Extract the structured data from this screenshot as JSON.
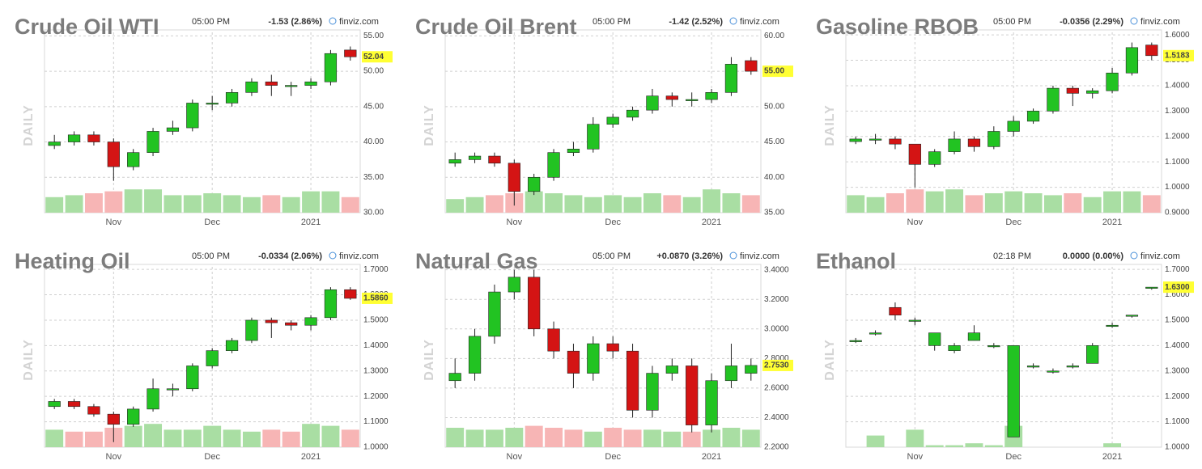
{
  "chart_data": [
    {
      "type": "candlestick",
      "title": "Crude Oil WTI",
      "time": "05:00 PM",
      "change": "-1.53 (2.86%)",
      "change_color": "#d00000",
      "source": "finviz.com",
      "side_label": "DAILY",
      "categories": [
        null,
        null,
        null,
        "Nov",
        null,
        null,
        null,
        null,
        "Dec",
        null,
        null,
        null,
        null,
        "2021",
        null,
        null
      ],
      "open": [
        39.5,
        40,
        41,
        40,
        36.5,
        38.5,
        41.5,
        42,
        45.5,
        45.5,
        47,
        48.5,
        48,
        48,
        48.5,
        53
      ],
      "high": [
        41,
        41.5,
        41.5,
        40.5,
        39,
        42,
        43,
        46,
        46.5,
        47.5,
        49,
        49.5,
        48.5,
        49,
        53,
        53.5
      ],
      "low": [
        39,
        39.5,
        39.5,
        34.5,
        36,
        38,
        41,
        41.5,
        44.5,
        45,
        46.5,
        46.5,
        46.5,
        47.5,
        48,
        51.5
      ],
      "close": [
        40,
        41,
        40,
        36.5,
        38.5,
        41.5,
        42,
        45.5,
        45.5,
        47,
        48.5,
        48,
        48,
        48.5,
        52.5,
        52.04
      ],
      "volume": [
        40,
        45,
        50,
        55,
        60,
        60,
        45,
        45,
        50,
        45,
        40,
        45,
        40,
        55,
        55,
        40
      ],
      "last_label": "52.04",
      "ylim": [
        30,
        55.5
      ],
      "yticks": [
        {
          "value": 30,
          "label": "30.00"
        },
        {
          "value": 35,
          "label": "35.00"
        },
        {
          "value": 40,
          "label": "40.00"
        },
        {
          "value": 45,
          "label": "45.00"
        },
        {
          "value": 50,
          "label": "50.00"
        },
        {
          "value": 55,
          "label": "55.00"
        }
      ],
      "up_color": "#22c322",
      "down_color": "#d41414",
      "volume_up_color": "#a9dea3",
      "volume_down_color": "#f7b5b5",
      "grid": true
    },
    {
      "type": "candlestick",
      "title": "Crude Oil Brent",
      "time": "05:00 PM",
      "change": "-1.42 (2.52%)",
      "change_color": "#d00000",
      "source": "finviz.com",
      "side_label": "DAILY",
      "categories": [
        null,
        null,
        null,
        "Nov",
        null,
        null,
        null,
        null,
        "Dec",
        null,
        null,
        null,
        null,
        "2021",
        null,
        null
      ],
      "open": [
        42,
        42.5,
        43,
        42,
        38,
        40,
        43.5,
        44,
        47.5,
        48.5,
        49.5,
        51.5,
        51,
        51,
        52,
        56.5
      ],
      "high": [
        43.5,
        43.5,
        43.5,
        42.5,
        40.5,
        44,
        45,
        48.5,
        49,
        50,
        52.5,
        52,
        52,
        52.5,
        57,
        57
      ],
      "low": [
        41.5,
        42,
        41.5,
        36,
        37.5,
        39.5,
        43,
        43.5,
        47,
        48,
        49,
        50,
        50,
        50.5,
        51.5,
        54.5
      ],
      "close": [
        42.5,
        43,
        42,
        38,
        40,
        43.5,
        44,
        47.5,
        48.5,
        49.5,
        51.5,
        51,
        51,
        52,
        56,
        55
      ],
      "volume": [
        35,
        40,
        45,
        50,
        55,
        50,
        45,
        40,
        45,
        40,
        50,
        45,
        40,
        60,
        50,
        45
      ],
      "last_label": "55.00",
      "ylim": [
        35,
        60.5
      ],
      "yticks": [
        {
          "value": 35,
          "label": "35.00"
        },
        {
          "value": 40,
          "label": "40.00"
        },
        {
          "value": 45,
          "label": "45.00"
        },
        {
          "value": 50,
          "label": "50.00"
        },
        {
          "value": 55,
          "label": "55.00"
        },
        {
          "value": 60,
          "label": "60.00"
        }
      ],
      "up_color": "#22c322",
      "down_color": "#d41414",
      "volume_up_color": "#a9dea3",
      "volume_down_color": "#f7b5b5",
      "grid": true
    },
    {
      "type": "candlestick",
      "title": "Gasoline RBOB",
      "time": "05:00 PM",
      "change": "-0.0356 (2.29%)",
      "change_color": "#d00000",
      "source": "finviz.com",
      "side_label": "DAILY",
      "categories": [
        null,
        null,
        null,
        "Nov",
        null,
        null,
        null,
        null,
        "Dec",
        null,
        null,
        null,
        null,
        "2021",
        null,
        null
      ],
      "open": [
        1.18,
        1.19,
        1.19,
        1.17,
        1.09,
        1.14,
        1.19,
        1.16,
        1.22,
        1.26,
        1.3,
        1.39,
        1.37,
        1.38,
        1.45,
        1.56
      ],
      "high": [
        1.2,
        1.21,
        1.2,
        1.17,
        1.15,
        1.22,
        1.2,
        1.24,
        1.28,
        1.31,
        1.4,
        1.4,
        1.39,
        1.47,
        1.57,
        1.57
      ],
      "low": [
        1.17,
        1.17,
        1.15,
        1.0,
        1.08,
        1.13,
        1.14,
        1.15,
        1.2,
        1.25,
        1.29,
        1.32,
        1.35,
        1.37,
        1.44,
        1.5
      ],
      "close": [
        1.19,
        1.19,
        1.17,
        1.09,
        1.14,
        1.19,
        1.16,
        1.22,
        1.26,
        1.3,
        1.39,
        1.37,
        1.38,
        1.45,
        1.55,
        1.5183
      ],
      "volume": [
        45,
        40,
        50,
        60,
        55,
        60,
        45,
        50,
        55,
        50,
        45,
        50,
        40,
        55,
        55,
        45
      ],
      "last_label": "1.5183",
      "ylim": [
        0.9,
        1.61
      ],
      "yticks": [
        {
          "value": 0.9,
          "label": "0.9000"
        },
        {
          "value": 1.0,
          "label": "1.0000"
        },
        {
          "value": 1.1,
          "label": "1.1000"
        },
        {
          "value": 1.2,
          "label": "1.2000"
        },
        {
          "value": 1.3,
          "label": "1.3000"
        },
        {
          "value": 1.4,
          "label": "1.4000"
        },
        {
          "value": 1.5,
          "label": "1.5000"
        },
        {
          "value": 1.6,
          "label": "1.6000"
        }
      ],
      "up_color": "#22c322",
      "down_color": "#d41414",
      "volume_up_color": "#a9dea3",
      "volume_down_color": "#f7b5b5",
      "grid": true
    },
    {
      "type": "candlestick",
      "title": "Heating Oil",
      "time": "05:00 PM",
      "change": "-0.0334 (2.06%)",
      "change_color": "#d00000",
      "source": "finviz.com",
      "side_label": "DAILY",
      "categories": [
        null,
        null,
        null,
        "Nov",
        null,
        null,
        null,
        null,
        "Dec",
        null,
        null,
        null,
        null,
        "2021",
        null,
        null
      ],
      "open": [
        1.16,
        1.18,
        1.16,
        1.13,
        1.09,
        1.15,
        1.23,
        1.23,
        1.32,
        1.38,
        1.42,
        1.5,
        1.49,
        1.48,
        1.51,
        1.62
      ],
      "high": [
        1.19,
        1.19,
        1.17,
        1.14,
        1.16,
        1.27,
        1.25,
        1.33,
        1.39,
        1.43,
        1.51,
        1.51,
        1.5,
        1.52,
        1.63,
        1.63
      ],
      "low": [
        1.15,
        1.15,
        1.12,
        1.02,
        1.08,
        1.14,
        1.2,
        1.22,
        1.31,
        1.37,
        1.41,
        1.43,
        1.46,
        1.46,
        1.5,
        1.58
      ],
      "close": [
        1.18,
        1.16,
        1.13,
        1.09,
        1.15,
        1.23,
        1.23,
        1.32,
        1.38,
        1.42,
        1.5,
        1.49,
        1.48,
        1.51,
        1.62,
        1.586
      ],
      "volume": [
        45,
        40,
        40,
        50,
        55,
        60,
        45,
        45,
        55,
        45,
        40,
        45,
        40,
        60,
        55,
        45
      ],
      "last_label": "1.5860",
      "ylim": [
        1.0,
        1.71
      ],
      "yticks": [
        {
          "value": 1.0,
          "label": "1.0000"
        },
        {
          "value": 1.1,
          "label": "1.1000"
        },
        {
          "value": 1.2,
          "label": "1.2000"
        },
        {
          "value": 1.3,
          "label": "1.3000"
        },
        {
          "value": 1.4,
          "label": "1.4000"
        },
        {
          "value": 1.5,
          "label": "1.5000"
        },
        {
          "value": 1.6,
          "label": "1.6000"
        },
        {
          "value": 1.7,
          "label": "1.7000"
        }
      ],
      "up_color": "#22c322",
      "down_color": "#d41414",
      "volume_up_color": "#a9dea3",
      "volume_down_color": "#f7b5b5",
      "grid": true
    },
    {
      "type": "candlestick",
      "title": "Natural Gas",
      "time": "05:00 PM",
      "change": "+0.0870 (3.26%)",
      "change_color": "#10a010",
      "source": "finviz.com",
      "side_label": "DAILY",
      "categories": [
        null,
        null,
        null,
        "Nov",
        null,
        null,
        null,
        null,
        "Dec",
        null,
        null,
        null,
        null,
        "2021",
        null,
        null
      ],
      "open": [
        2.65,
        2.7,
        2.95,
        3.25,
        3.35,
        3.0,
        2.85,
        2.7,
        2.9,
        2.85,
        2.45,
        2.7,
        2.75,
        2.35,
        2.65,
        2.7
      ],
      "high": [
        2.8,
        3.0,
        3.3,
        3.4,
        3.4,
        3.05,
        2.9,
        2.95,
        2.95,
        2.9,
        2.75,
        2.8,
        2.8,
        2.7,
        2.9,
        2.8
      ],
      "low": [
        2.6,
        2.65,
        2.9,
        3.2,
        2.95,
        2.8,
        2.6,
        2.65,
        2.8,
        2.4,
        2.4,
        2.65,
        2.3,
        2.3,
        2.6,
        2.65
      ],
      "close": [
        2.7,
        2.95,
        3.25,
        3.35,
        3.0,
        2.85,
        2.7,
        2.9,
        2.85,
        2.45,
        2.7,
        2.75,
        2.35,
        2.65,
        2.75,
        2.753
      ],
      "volume": [
        50,
        45,
        45,
        50,
        55,
        50,
        45,
        40,
        50,
        45,
        45,
        40,
        40,
        45,
        50,
        45
      ],
      "last_label": "2.7530",
      "ylim": [
        2.2,
        3.42
      ],
      "yticks": [
        {
          "value": 2.2,
          "label": "2.2000"
        },
        {
          "value": 2.4,
          "label": "2.4000"
        },
        {
          "value": 2.6,
          "label": "2.6000"
        },
        {
          "value": 2.8,
          "label": "2.8000"
        },
        {
          "value": 3.0,
          "label": "3.0000"
        },
        {
          "value": 3.2,
          "label": "3.2000"
        },
        {
          "value": 3.4,
          "label": "3.4000"
        }
      ],
      "up_color": "#22c322",
      "down_color": "#d41414",
      "volume_up_color": "#a9dea3",
      "volume_down_color": "#f7b5b5",
      "grid": true
    },
    {
      "type": "candlestick",
      "title": "Ethanol",
      "time": "02:18 PM",
      "change": "0.0000 (0.00%)",
      "change_color": "#111111",
      "source": "finviz.com",
      "side_label": "DAILY",
      "categories": [
        null,
        null,
        null,
        "Nov",
        null,
        null,
        null,
        null,
        "Dec",
        null,
        null,
        null,
        null,
        "2021",
        null,
        null
      ],
      "open": [
        1.42,
        1.45,
        1.55,
        1.5,
        1.4,
        1.38,
        1.42,
        1.4,
        1.04,
        1.32,
        1.3,
        1.32,
        1.33,
        1.48,
        1.52,
        1.63
      ],
      "high": [
        1.43,
        1.46,
        1.57,
        1.51,
        1.45,
        1.41,
        1.48,
        1.41,
        1.4,
        1.33,
        1.31,
        1.33,
        1.41,
        1.49,
        1.52,
        1.63
      ],
      "low": [
        1.41,
        1.44,
        1.5,
        1.48,
        1.38,
        1.37,
        1.42,
        1.39,
        1.04,
        1.31,
        1.29,
        1.31,
        1.33,
        1.47,
        1.51,
        1.62
      ],
      "close": [
        1.42,
        1.45,
        1.52,
        1.5,
        1.45,
        1.4,
        1.45,
        1.4,
        1.4,
        1.32,
        1.3,
        1.32,
        1.4,
        1.48,
        1.52,
        1.63
      ],
      "volume": [
        0,
        30,
        0,
        45,
        5,
        5,
        10,
        5,
        55,
        0,
        0,
        0,
        0,
        10,
        0,
        0
      ],
      "last_label": "1.6300",
      "ylim": [
        1.0,
        1.71
      ],
      "yticks": [
        {
          "value": 1.0,
          "label": "1.0000"
        },
        {
          "value": 1.1,
          "label": "1.1000"
        },
        {
          "value": 1.2,
          "label": "1.2000"
        },
        {
          "value": 1.3,
          "label": "1.3000"
        },
        {
          "value": 1.4,
          "label": "1.4000"
        },
        {
          "value": 1.5,
          "label": "1.5000"
        },
        {
          "value": 1.6,
          "label": "1.6000"
        },
        {
          "value": 1.7,
          "label": "1.7000"
        }
      ],
      "up_color": "#22c322",
      "down_color": "#d41414",
      "volume_up_color": "#a9dea3",
      "volume_down_color": "#f7b5b5",
      "grid": true
    }
  ]
}
